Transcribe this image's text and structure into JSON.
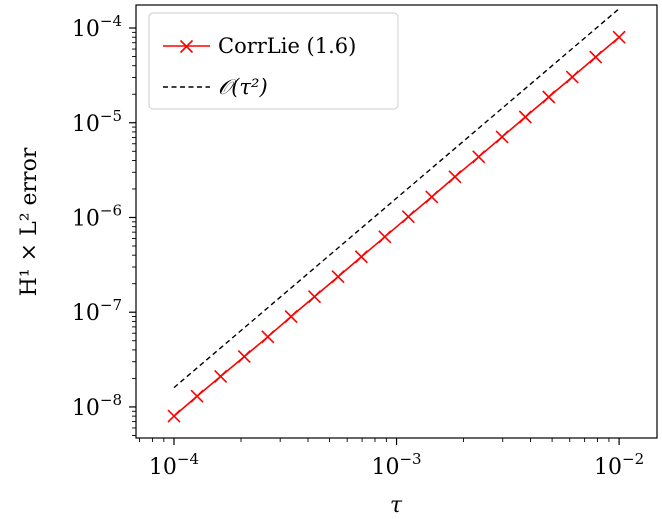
{
  "chart_data": {
    "type": "line",
    "xscale": "log",
    "yscale": "log",
    "xlim": [
      6.75e-05,
      0.0148
    ],
    "ylim": [
      4.7e-09,
      0.000175
    ],
    "xlabel": "τ",
    "ylabel": "H¹ × L² error",
    "xticks": [
      0.0001,
      0.001,
      0.01
    ],
    "xtick_labels": [
      {
        "base": "10",
        "exp": "−4"
      },
      {
        "base": "10",
        "exp": "−3"
      },
      {
        "base": "10",
        "exp": "−2"
      }
    ],
    "yticks": [
      1e-08,
      1e-07,
      1e-06,
      1e-05,
      0.0001
    ],
    "ytick_labels": [
      {
        "base": "10",
        "exp": "−8"
      },
      {
        "base": "10",
        "exp": "−7"
      },
      {
        "base": "10",
        "exp": "−6"
      },
      {
        "base": "10",
        "exp": "−5"
      },
      {
        "base": "10",
        "exp": "−4"
      }
    ],
    "grid": false,
    "legend_position": "top-left",
    "series": [
      {
        "name": "CorrLie (1.6)",
        "color": "#ff0000",
        "style": "solid",
        "marker": "x",
        "x": [
          0.0001,
          0.000127,
          0.000162,
          0.000207,
          0.000264,
          0.000336,
          0.000428,
          0.000546,
          0.000695,
          0.000886,
          0.00113,
          0.00144,
          0.00183,
          0.00234,
          0.00298,
          0.00379,
          0.00483,
          0.00616,
          0.00785,
          0.01
        ],
        "y": [
          8e-09,
          1.3e-08,
          2.1e-08,
          3.4e-08,
          5.5e-08,
          9e-08,
          1.46e-07,
          2.37e-07,
          3.85e-07,
          6.25e-07,
          1.02e-06,
          1.65e-06,
          2.69e-06,
          4.37e-06,
          7.09e-06,
          1.15e-05,
          1.87e-05,
          3.04e-05,
          4.94e-05,
          8e-05
        ]
      },
      {
        "name": "𝒪(τ²)",
        "color": "#000000",
        "style": "dashed",
        "marker": "none",
        "x": [
          0.0001,
          0.01
        ],
        "y": [
          1.6e-08,
          0.00016
        ]
      }
    ]
  }
}
